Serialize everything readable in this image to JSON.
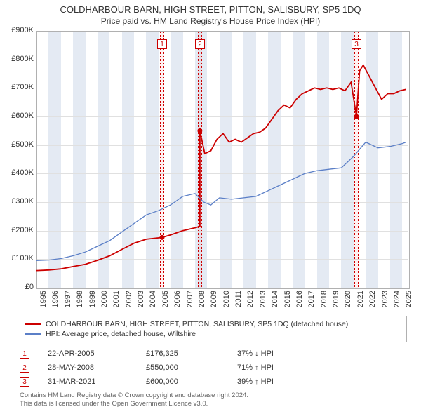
{
  "title_line1": "COLDHARBOUR BARN, HIGH STREET, PITTON, SALISBURY, SP5 1DQ",
  "title_line2": "Price paid vs. HM Land Registry's House Price Index (HPI)",
  "chart": {
    "type": "line",
    "background_color": "#ffffff",
    "alt_band_color": "#e4eaf3",
    "grid_color": "#e0e0e0",
    "border_color": "#b0b0b0",
    "x_years": [
      1995,
      1996,
      1997,
      1998,
      1999,
      2000,
      2001,
      2002,
      2003,
      2004,
      2005,
      2006,
      2007,
      2008,
      2009,
      2010,
      2011,
      2012,
      2013,
      2014,
      2015,
      2016,
      2017,
      2018,
      2019,
      2020,
      2021,
      2022,
      2023,
      2024,
      2025
    ],
    "xlim": [
      1995,
      2025.5
    ],
    "ylim": [
      0,
      900
    ],
    "ytick_step": 100,
    "ytick_prefix": "£",
    "ytick_suffix": "K",
    "ytick_zero_label": "£0",
    "axis_fontsize": 11,
    "series": [
      {
        "name": "property",
        "label": "COLDHARBOUR BARN, HIGH STREET, PITTON, SALISBURY, SP5 1DQ (detached house)",
        "color": "#cc0000",
        "line_width": 1.8,
        "points": [
          [
            1995.0,
            60
          ],
          [
            1996.0,
            62
          ],
          [
            1997.0,
            66
          ],
          [
            1998.0,
            74
          ],
          [
            1999.0,
            82
          ],
          [
            2000.0,
            96
          ],
          [
            2001.0,
            112
          ],
          [
            2002.0,
            134
          ],
          [
            2003.0,
            156
          ],
          [
            2004.0,
            170
          ],
          [
            2005.3,
            176
          ],
          [
            2006.0,
            185
          ],
          [
            2007.0,
            200
          ],
          [
            2008.0,
            210
          ],
          [
            2008.4,
            215
          ],
          [
            2008.4,
            550
          ],
          [
            2008.8,
            470
          ],
          [
            2009.3,
            480
          ],
          [
            2009.8,
            520
          ],
          [
            2010.3,
            540
          ],
          [
            2010.8,
            510
          ],
          [
            2011.3,
            520
          ],
          [
            2011.8,
            510
          ],
          [
            2012.3,
            525
          ],
          [
            2012.8,
            540
          ],
          [
            2013.3,
            545
          ],
          [
            2013.8,
            560
          ],
          [
            2014.3,
            590
          ],
          [
            2014.8,
            620
          ],
          [
            2015.3,
            640
          ],
          [
            2015.8,
            630
          ],
          [
            2016.3,
            660
          ],
          [
            2016.8,
            680
          ],
          [
            2017.3,
            690
          ],
          [
            2017.8,
            700
          ],
          [
            2018.3,
            695
          ],
          [
            2018.8,
            700
          ],
          [
            2019.3,
            695
          ],
          [
            2019.8,
            700
          ],
          [
            2020.3,
            690
          ],
          [
            2020.8,
            720
          ],
          [
            2021.24,
            600
          ],
          [
            2021.24,
            600
          ],
          [
            2021.5,
            760
          ],
          [
            2021.8,
            780
          ],
          [
            2022.3,
            740
          ],
          [
            2022.8,
            700
          ],
          [
            2023.3,
            660
          ],
          [
            2023.8,
            680
          ],
          [
            2024.3,
            680
          ],
          [
            2024.8,
            690
          ],
          [
            2025.3,
            695
          ]
        ],
        "markers": [
          {
            "x": 2005.3,
            "y": 176
          },
          {
            "x": 2008.4,
            "y": 550
          },
          {
            "x": 2021.24,
            "y": 600
          }
        ]
      },
      {
        "name": "hpi",
        "label": "HPI: Average price, detached house, Wiltshire",
        "color": "#5b7fc7",
        "line_width": 1.3,
        "points": [
          [
            1995.0,
            95
          ],
          [
            1996.0,
            97
          ],
          [
            1997.0,
            102
          ],
          [
            1998.0,
            112
          ],
          [
            1999.0,
            125
          ],
          [
            2000.0,
            145
          ],
          [
            2001.0,
            165
          ],
          [
            2002.0,
            195
          ],
          [
            2003.0,
            225
          ],
          [
            2004.0,
            255
          ],
          [
            2005.0,
            270
          ],
          [
            2006.0,
            290
          ],
          [
            2007.0,
            320
          ],
          [
            2008.0,
            330
          ],
          [
            2008.7,
            300
          ],
          [
            2009.3,
            290
          ],
          [
            2010.0,
            315
          ],
          [
            2011.0,
            310
          ],
          [
            2012.0,
            315
          ],
          [
            2013.0,
            320
          ],
          [
            2014.0,
            340
          ],
          [
            2015.0,
            360
          ],
          [
            2016.0,
            380
          ],
          [
            2017.0,
            400
          ],
          [
            2018.0,
            410
          ],
          [
            2019.0,
            415
          ],
          [
            2020.0,
            420
          ],
          [
            2021.0,
            460
          ],
          [
            2022.0,
            510
          ],
          [
            2023.0,
            490
          ],
          [
            2024.0,
            495
          ],
          [
            2025.0,
            505
          ],
          [
            2025.3,
            510
          ]
        ]
      }
    ],
    "sale_bands": [
      {
        "num": "1",
        "x_center": 2005.3,
        "width_years": 0.35
      },
      {
        "num": "2",
        "x_center": 2008.4,
        "width_years": 0.35
      },
      {
        "num": "3",
        "x_center": 2021.24,
        "width_years": 0.35
      }
    ],
    "sale_band_fill": "rgba(255,0,0,0.06)",
    "sale_band_border": "#cc0000",
    "marker_color": "#cc0000",
    "marker_radius": 3.5
  },
  "legend": {
    "items": [
      {
        "color": "#cc0000",
        "label": "COLDHARBOUR BARN, HIGH STREET, PITTON, SALISBURY, SP5 1DQ (detached house)"
      },
      {
        "color": "#5b7fc7",
        "label": "HPI: Average price, detached house, Wiltshire"
      }
    ]
  },
  "sales": [
    {
      "num": "1",
      "date": "22-APR-2005",
      "price": "£176,325",
      "hpi": "37% ↓ HPI"
    },
    {
      "num": "2",
      "date": "28-MAY-2008",
      "price": "£550,000",
      "hpi": "71% ↑ HPI"
    },
    {
      "num": "3",
      "date": "31-MAR-2021",
      "price": "£600,000",
      "hpi": "39% ↑ HPI"
    }
  ],
  "footer_line1": "Contains HM Land Registry data © Crown copyright and database right 2024.",
  "footer_line2": "This data is licensed under the Open Government Licence v3.0."
}
